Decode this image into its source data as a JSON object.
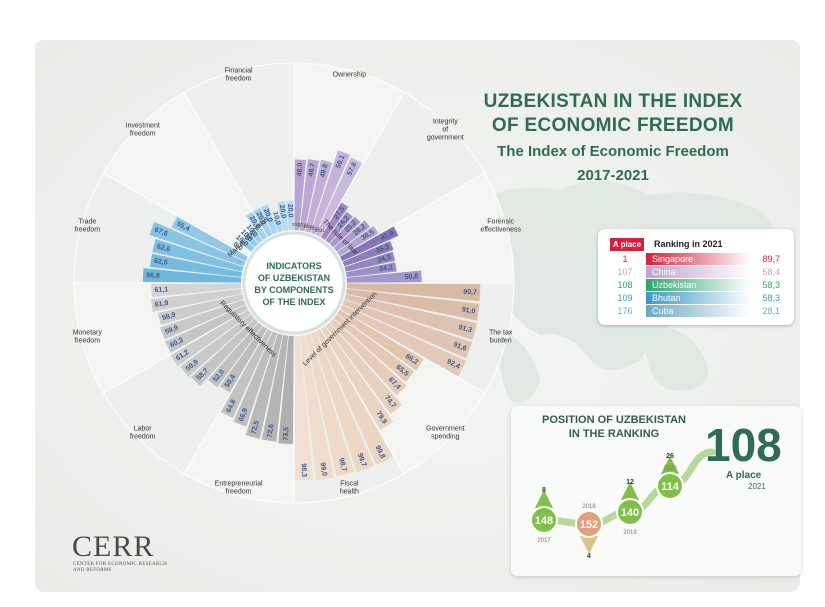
{
  "title": {
    "line1": "UZBEKISTAN IN THE INDEX",
    "line2": "OF ECONOMIC FREEDOM",
    "line3": "The Index of Economic Freedom",
    "line4": "2017-2021"
  },
  "center": {
    "line1": "INDICATORS",
    "line2": "OF UZBEKISTAN",
    "line3": "BY COMPONENTS",
    "line4": "OF THE INDEX"
  },
  "colors": {
    "ownership": "#b7a4d2",
    "integrity": "#9e8ac3",
    "forensic": "#8576b9",
    "trade": "#6fb7df",
    "investment": "#87c6e6",
    "financial": "#a3d3ec",
    "tax": "#d9b8a4",
    "spending": "#e3c6b0",
    "fiscal": "#ecd5c2",
    "monetary": "#c6c6c6",
    "labor": "#bdbdbd",
    "entrepreneurial": "#b0b0b0",
    "accent_green": "#2f6b55",
    "red": "#d71e3c"
  },
  "groups": [
    {
      "label": "The rule of law"
    },
    {
      "label": "Market openness"
    },
    {
      "label": "Regulatory effectiveness"
    },
    {
      "label": "Level of government intervention"
    }
  ],
  "years": [
    "2017",
    "2018",
    "2019",
    "2020",
    "2021"
  ],
  "chart_data": {
    "type": "bar",
    "layout": "radial",
    "categories": [
      "Ownership",
      "Integrity of government",
      "Forensic effectiveness",
      "The tax burden",
      "Government spending",
      "Fiscal health",
      "Entrepreneurial freedom",
      "Labor freedom",
      "Monetary freedom",
      "Trade freedom",
      "Investment freedom",
      "Financial freedom"
    ],
    "series": [
      {
        "name": "2017",
        "values": [
          48.0,
          27.5,
          41.9,
          90.7,
          66.2,
          99.8,
          73.5,
          50.4,
          60.3,
          66.8,
          0.0,
          20.0
        ]
      },
      {
        "name": "2018",
        "values": [
          48.7,
          24.2,
          35.3,
          91.0,
          65.5,
          99.7,
          72.6,
          52.0,
          59.9,
          62.5,
          10.0,
          20.0
        ]
      },
      {
        "name": "2019",
        "values": [
          49.8,
          25.2,
          34.3,
          91.3,
          67.4,
          98.7,
          72.5,
          58.7,
          58.9,
          62.6,
          10.0,
          10.0
        ]
      },
      {
        "name": "2020",
        "values": [
          59.1,
          28.2,
          34.2,
          91.6,
          74.7,
          99.0,
          66.9,
          59.9,
          61.9,
          67.6,
          10.0,
          20.0
        ]
      },
      {
        "name": "2021",
        "values": [
          57.8,
          30.5,
          50.8,
          92.4,
          79.9,
          98.3,
          64.8,
          61.2,
          61.1,
          55.4,
          20.0,
          20.0
        ]
      }
    ],
    "labels": [
      [
        "48.0",
        "48.7",
        "49.8",
        "59.1",
        "57.8"
      ],
      [
        "27,5",
        "24,2",
        "25,2",
        "28,2",
        "30,5"
      ],
      [
        "41,9",
        "35,3",
        "34,3",
        "34,2",
        "50,8"
      ],
      [
        "90,7",
        "91,0",
        "91,3",
        "91,6",
        "92,4"
      ],
      [
        "66,2",
        "65,5",
        "67,4",
        "74,7",
        "79,9"
      ],
      [
        "99,8",
        "99,7",
        "98,7",
        "99,0",
        "98,3"
      ],
      [
        "73,5",
        "72,6",
        "72,5",
        "66,9",
        "64,8"
      ],
      [
        "50,4",
        "52,0",
        "58,7",
        "59,9",
        "61,2"
      ],
      [
        "60,3",
        "59,9",
        "58,9",
        "61,9",
        "61,1"
      ],
      [
        "66,8",
        "62,5",
        "62,6",
        "67,6",
        "55,4"
      ],
      [
        "0,0",
        "10,0",
        "10,0",
        "10,0",
        "20,0"
      ],
      [
        "20,0",
        "20,0",
        "10,0",
        "20,0",
        "20,0"
      ]
    ],
    "ylim": [
      0,
      100
    ]
  },
  "category_titles": [
    [
      "Ownership"
    ],
    [
      "Integrity",
      "of",
      "government"
    ],
    [
      "Forensic",
      "effectiveness"
    ],
    [
      "The tax",
      "burden"
    ],
    [
      "Government",
      "spending"
    ],
    [
      "Fiscal",
      "health"
    ],
    [
      "Entrepreneurial",
      "freedom"
    ],
    [
      "Labor",
      "freedom"
    ],
    [
      "Monetary",
      "freedom"
    ],
    [
      "Trade",
      "freedom"
    ],
    [
      "Investment",
      "freedom"
    ],
    [
      "Financial",
      "freedom"
    ]
  ],
  "ranking": {
    "header_place": "A place",
    "header_label": "Ranking in 2021",
    "rows": [
      {
        "place": "1",
        "country": "Singapore",
        "score": "89,7",
        "color": "#d71e3c"
      },
      {
        "place": "107",
        "country": "China",
        "score": "58,4",
        "color": "#c0a3cf"
      },
      {
        "place": "108",
        "country": "Uzbekistan",
        "score": "58,3",
        "color": "#2fa46c"
      },
      {
        "place": "109",
        "country": "Bhutan",
        "score": "58,3",
        "color": "#3b96c9"
      },
      {
        "place": "176",
        "country": "Cuba",
        "score": "28,1",
        "color": "#6aa8c4"
      }
    ]
  },
  "position": {
    "title_line1": "POSITION OF UZBEKISTAN",
    "title_line2": "IN THE RANKING",
    "big": "108",
    "big_label": "A place",
    "big_year": "2021",
    "points": [
      {
        "year": "2017",
        "rank": "148",
        "change": "8",
        "dir": "up",
        "color": "#7fbf4a"
      },
      {
        "year": "2018",
        "rank": "152",
        "change": "4",
        "dir": "down",
        "color": "#e2a07a"
      },
      {
        "year": "2019",
        "rank": "140",
        "change": "12",
        "dir": "up",
        "color": "#7fbf4a"
      },
      {
        "year": "2020",
        "rank": "114",
        "change": "26",
        "dir": "up",
        "color": "#7fbf4a"
      }
    ]
  },
  "logo": {
    "name": "CERR",
    "sub": "CENTER FOR ECONOMIC RESEARCH AND REFORMS"
  }
}
